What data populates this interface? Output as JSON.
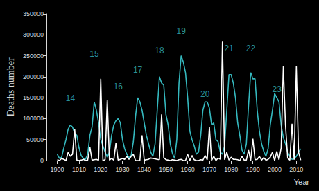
{
  "chart_data": {
    "type": "line",
    "x_label": "Year",
    "y_label": "Deaths number",
    "x": [
      1900,
      1901,
      1902,
      1903,
      1904,
      1905,
      1906,
      1907,
      1908,
      1909,
      1910,
      1911,
      1912,
      1913,
      1914,
      1915,
      1916,
      1917,
      1918,
      1919,
      1920,
      1921,
      1922,
      1923,
      1924,
      1925,
      1926,
      1927,
      1928,
      1929,
      1930,
      1931,
      1932,
      1933,
      1934,
      1935,
      1936,
      1937,
      1938,
      1939,
      1940,
      1941,
      1942,
      1943,
      1944,
      1945,
      1946,
      1947,
      1948,
      1949,
      1950,
      1951,
      1952,
      1953,
      1954,
      1955,
      1956,
      1957,
      1958,
      1959,
      1960,
      1961,
      1962,
      1963,
      1964,
      1965,
      1966,
      1967,
      1968,
      1969,
      1970,
      1971,
      1972,
      1973,
      1974,
      1975,
      1976,
      1977,
      1978,
      1979,
      1980,
      1981,
      1982,
      1983,
      1984,
      1985,
      1986,
      1987,
      1988,
      1989,
      1990,
      1991,
      1992,
      1993,
      1994,
      1995,
      1996,
      1997,
      1998,
      1999,
      2000,
      2001,
      2002,
      2003,
      2004,
      2005,
      2006,
      2007,
      2008,
      2009,
      2010,
      2011,
      2012
    ],
    "series": [
      {
        "color": "#35b9bf",
        "values": [
          15000,
          5000,
          8000,
          30000,
          50000,
          75000,
          85000,
          80000,
          65000,
          60000,
          30000,
          12000,
          5000,
          3000,
          15000,
          60000,
          80000,
          140000,
          120000,
          90000,
          50000,
          35000,
          20000,
          8000,
          20000,
          60000,
          85000,
          95000,
          100000,
          90000,
          50000,
          28000,
          15000,
          7000,
          12000,
          45000,
          105000,
          150000,
          140000,
          120000,
          90000,
          60000,
          40000,
          20000,
          10000,
          40000,
          120000,
          200000,
          185000,
          180000,
          110000,
          85000,
          40000,
          17000,
          5000,
          50000,
          185000,
          250000,
          235000,
          210000,
          150000,
          70000,
          50000,
          35000,
          15000,
          20000,
          60000,
          120000,
          140000,
          140000,
          125000,
          85000,
          90000,
          50000,
          45000,
          20000,
          15000,
          35000,
          120000,
          205000,
          205000,
          185000,
          150000,
          90000,
          60000,
          25000,
          15000,
          40000,
          130000,
          210000,
          195000,
          195000,
          120000,
          70000,
          40000,
          22000,
          10000,
          28000,
          85000,
          120000,
          160000,
          150000,
          140000,
          85000,
          55000,
          40000,
          20000,
          10000,
          3000,
          4000,
          10000,
          20000,
          28000
        ]
      },
      {
        "color": "#ffffff",
        "values": [
          2000,
          0,
          5000,
          3000,
          0,
          20000,
          10000,
          15000,
          75000,
          1000,
          0,
          1000,
          3000,
          0,
          1000,
          32000,
          1000,
          2000,
          3000,
          1000,
          195000,
          0,
          2000,
          145000,
          1000,
          5000,
          1000,
          42000,
          1000,
          3000,
          5000,
          3000,
          10000,
          3000,
          10000,
          15000,
          0,
          0,
          0,
          60000,
          1000,
          2000,
          3000,
          6000,
          5000,
          4000,
          3000,
          2000,
          110000,
          7000,
          2000,
          1000,
          0,
          2000,
          1000,
          0,
          2000,
          3000,
          0,
          0,
          15000,
          0,
          12000,
          2000,
          0,
          0,
          2000,
          1000,
          12000,
          2000,
          80000,
          0,
          10000,
          0,
          6000,
          3000,
          285000,
          2000,
          20000,
          1000,
          8000,
          3000,
          3000,
          2000,
          0,
          10000,
          1000,
          1000,
          25000,
          0,
          52000,
          2000,
          3000,
          10000,
          1000,
          7000,
          1000,
          3000,
          8000,
          20000,
          0,
          22000,
          2000,
          30000,
          225000,
          85000,
          6000,
          1000,
          88000,
          2000,
          225000,
          20000,
          1000
        ]
      }
    ],
    "annotations": [
      {
        "text": "14",
        "x": 1906,
        "y": 148000
      },
      {
        "text": "15",
        "x": 1917,
        "y": 255000
      },
      {
        "text": "16",
        "x": 1928,
        "y": 177000
      },
      {
        "text": "17",
        "x": 1937,
        "y": 217000
      },
      {
        "text": "18",
        "x": 1947,
        "y": 262000
      },
      {
        "text": "19",
        "x": 1957,
        "y": 308000
      },
      {
        "text": "20",
        "x": 1968,
        "y": 158000
      },
      {
        "text": "21",
        "x": 1979,
        "y": 267000
      },
      {
        "text": "22",
        "x": 1989,
        "y": 267000
      },
      {
        "text": "23",
        "x": 2001,
        "y": 170000
      }
    ],
    "xlim": [
      1895,
      2015
    ],
    "xticks": [
      1900,
      1910,
      1920,
      1930,
      1940,
      1950,
      1960,
      1970,
      1980,
      1990,
      2000,
      2010
    ],
    "ylim": [
      0,
      350000
    ],
    "yticks": [
      0,
      50000,
      100000,
      150000,
      200000,
      250000,
      300000,
      350000
    ],
    "grid": false
  }
}
